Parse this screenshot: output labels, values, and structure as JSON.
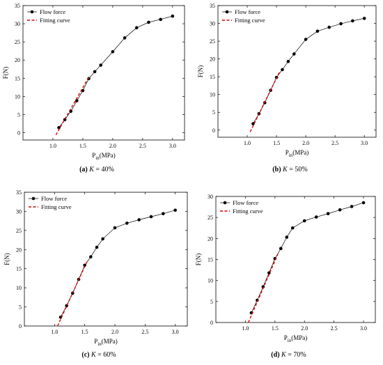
{
  "colors": {
    "flow_marker": "#000000",
    "fit_line": "#dd0000",
    "axis": "#000000"
  },
  "legend": {
    "flow": "Flow force",
    "fit": "Fitting curve"
  },
  "chart_data": [
    {
      "type": "line",
      "caption_letter": "(a)",
      "caption_var": "K",
      "caption_eq": "= 40%",
      "xlabel_main": "P",
      "xlabel_sub": "in",
      "xlabel_unit": "(MPa)",
      "ylabel": "F(N)",
      "xlim": [
        0.5,
        3.2
      ],
      "ylim": [
        -2,
        35
      ],
      "xticks": [
        1.0,
        1.5,
        2.0,
        2.5,
        3.0
      ],
      "xtick_labels": [
        "1.0",
        "1.5",
        "2.0",
        "2.5",
        "3.0"
      ],
      "yticks": [
        0,
        5,
        10,
        15,
        20,
        25,
        30,
        35
      ],
      "ytick_labels": [
        "0",
        "5",
        "10",
        "15",
        "20",
        "25",
        "30",
        "35"
      ],
      "series": [
        {
          "name": "Flow force",
          "x": [
            1.1,
            1.2,
            1.3,
            1.4,
            1.5,
            1.6,
            1.7,
            1.8,
            2.0,
            2.2,
            2.4,
            2.6,
            2.8,
            3.0
          ],
          "y": [
            1.4,
            3.6,
            5.9,
            8.8,
            11.6,
            14.9,
            16.8,
            18.6,
            22.3,
            26.1,
            28.9,
            30.4,
            31.2,
            32.1
          ]
        },
        {
          "name": "Fitting curve",
          "x": [
            1.05,
            1.6
          ],
          "y": [
            -0.6,
            15.3
          ]
        }
      ]
    },
    {
      "type": "line",
      "caption_letter": "(b)",
      "caption_var": "K",
      "caption_eq": "= 50%",
      "xlabel_main": "P",
      "xlabel_sub": "in",
      "xlabel_unit": "(MPa)",
      "ylabel": "F(N)",
      "xlim": [
        0.5,
        3.2
      ],
      "ylim": [
        -2,
        35
      ],
      "xticks": [
        1.0,
        1.5,
        2.0,
        2.5,
        3.0
      ],
      "xtick_labels": [
        "1.0",
        "1.5",
        "2.0",
        "2.5",
        "3.0"
      ],
      "yticks": [
        0,
        5,
        10,
        15,
        20,
        25,
        30,
        35
      ],
      "ytick_labels": [
        "0",
        "5",
        "10",
        "15",
        "20",
        "25",
        "30",
        "35"
      ],
      "series": [
        {
          "name": "Flow force",
          "x": [
            1.1,
            1.2,
            1.3,
            1.4,
            1.5,
            1.6,
            1.7,
            1.8,
            2.0,
            2.2,
            2.4,
            2.6,
            2.8,
            3.0
          ],
          "y": [
            1.8,
            4.6,
            7.7,
            11.2,
            14.8,
            17.0,
            19.3,
            21.4,
            25.5,
            27.8,
            28.9,
            29.9,
            30.7,
            31.4
          ]
        },
        {
          "name": "Fitting curve",
          "x": [
            1.05,
            1.55
          ],
          "y": [
            -0.5,
            16.3
          ]
        }
      ]
    },
    {
      "type": "line",
      "caption_letter": "(c)",
      "caption_var": "K",
      "caption_eq": "= 60%",
      "xlabel_main": "P",
      "xlabel_sub": "in",
      "xlabel_unit": "(MPa)",
      "ylabel": "F(N)",
      "xlim": [
        0.5,
        3.2
      ],
      "ylim": [
        0,
        35
      ],
      "xticks": [
        1.0,
        1.5,
        2.0,
        2.5,
        3.0
      ],
      "xtick_labels": [
        "1.0",
        "1.5",
        "2.0",
        "2.5",
        "3.0"
      ],
      "yticks": [
        0,
        5,
        10,
        15,
        20,
        25,
        30,
        35
      ],
      "ytick_labels": [
        "0",
        "5",
        "10",
        "15",
        "20",
        "25",
        "30",
        "35"
      ],
      "series": [
        {
          "name": "Flow force",
          "x": [
            1.1,
            1.2,
            1.3,
            1.4,
            1.5,
            1.6,
            1.7,
            1.8,
            2.0,
            2.2,
            2.4,
            2.6,
            2.8,
            3.0
          ],
          "y": [
            2.3,
            5.3,
            8.6,
            12.2,
            15.9,
            18.1,
            20.6,
            22.8,
            25.7,
            26.9,
            27.8,
            28.6,
            29.4,
            30.3
          ]
        },
        {
          "name": "Fitting curve",
          "x": [
            1.05,
            1.55
          ],
          "y": [
            0.0,
            17.3
          ]
        }
      ]
    },
    {
      "type": "line",
      "caption_letter": "(d)",
      "caption_var": "K",
      "caption_eq": "= 70%",
      "xlabel_main": "P",
      "xlabel_sub": "in",
      "xlabel_unit": "(MPa)",
      "ylabel": "F(N)",
      "xlim": [
        0.5,
        3.2
      ],
      "ylim": [
        0,
        30
      ],
      "xticks": [
        1.0,
        1.5,
        2.0,
        2.5,
        3.0
      ],
      "xtick_labels": [
        "1.0",
        "1.5",
        "2.0",
        "2.5",
        "3.0"
      ],
      "yticks": [
        0,
        5,
        10,
        15,
        20,
        25,
        30
      ],
      "ytick_labels": [
        "0",
        "5",
        "10",
        "15",
        "20",
        "25",
        "30"
      ],
      "series": [
        {
          "name": "Flow force",
          "x": [
            1.1,
            1.2,
            1.3,
            1.4,
            1.5,
            1.6,
            1.7,
            1.8,
            2.0,
            2.2,
            2.4,
            2.6,
            2.8,
            3.0
          ],
          "y": [
            2.3,
            5.3,
            8.5,
            11.8,
            15.2,
            17.6,
            20.3,
            22.5,
            24.2,
            25.1,
            25.9,
            26.8,
            27.6,
            28.5
          ]
        },
        {
          "name": "Fitting curve",
          "x": [
            1.05,
            1.55
          ],
          "y": [
            0.0,
            16.3
          ]
        }
      ]
    }
  ]
}
